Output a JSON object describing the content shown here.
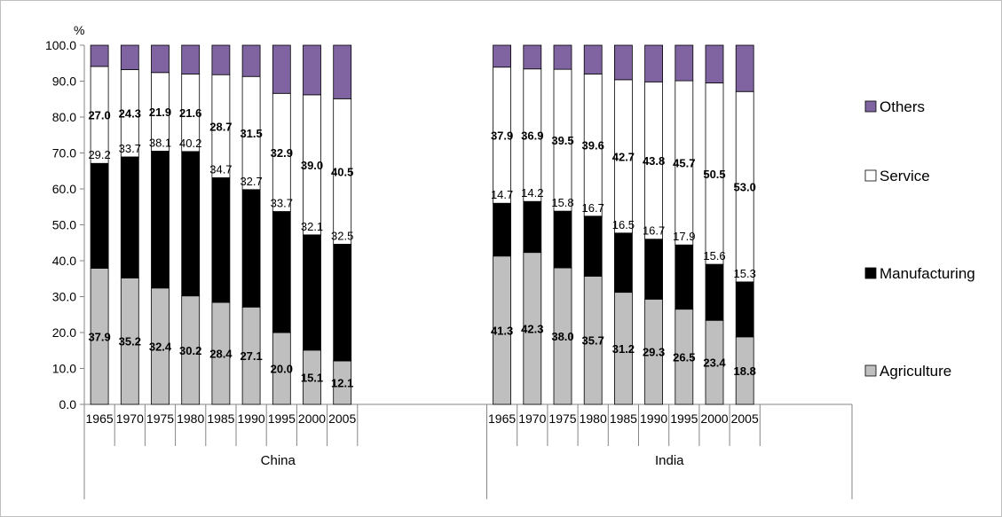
{
  "chart_data": {
    "type": "bar",
    "stacked": true,
    "y_unit_label": "%",
    "ylim": [
      0,
      100
    ],
    "y_ticks": [
      "0.0",
      "10.0",
      "20.0",
      "30.0",
      "40.0",
      "50.0",
      "60.0",
      "70.0",
      "80.0",
      "90.0",
      "100.0"
    ],
    "grid": false,
    "legend_position": "right",
    "groups": [
      {
        "name": "China",
        "categories": [
          "1965",
          "1970",
          "1975",
          "1980",
          "1985",
          "1990",
          "1995",
          "2000",
          "2005"
        ],
        "series": [
          {
            "name": "Agriculture",
            "values": [
              37.9,
              35.2,
              32.4,
              30.2,
              28.4,
              27.1,
              20.0,
              15.1,
              12.1
            ]
          },
          {
            "name": "Manufacturing",
            "values": [
              29.2,
              33.7,
              38.1,
              40.2,
              34.7,
              32.7,
              33.7,
              32.1,
              32.5
            ]
          },
          {
            "name": "Service",
            "values": [
              27.0,
              24.3,
              21.9,
              21.6,
              28.7,
              31.5,
              32.9,
              39.0,
              40.5
            ]
          },
          {
            "name": "Others",
            "values": [
              5.9,
              6.8,
              7.6,
              8.0,
              8.2,
              8.7,
              13.4,
              13.8,
              14.9
            ]
          }
        ]
      },
      {
        "name": "India",
        "categories": [
          "1965",
          "1970",
          "1975",
          "1980",
          "1985",
          "1990",
          "1995",
          "2000",
          "2005"
        ],
        "series": [
          {
            "name": "Agriculture",
            "values": [
              41.3,
              42.3,
              38.0,
              35.7,
              31.2,
              29.3,
              26.5,
              23.4,
              18.8
            ]
          },
          {
            "name": "Manufacturing",
            "values": [
              14.7,
              14.2,
              15.8,
              16.7,
              16.5,
              16.7,
              17.9,
              15.6,
              15.3
            ]
          },
          {
            "name": "Service",
            "values": [
              37.9,
              36.9,
              39.5,
              39.6,
              42.7,
              43.8,
              45.7,
              50.5,
              53.0
            ]
          },
          {
            "name": "Others",
            "values": [
              6.1,
              6.6,
              6.7,
              8.0,
              9.6,
              10.2,
              9.9,
              10.5,
              12.9
            ]
          }
        ]
      }
    ],
    "labeled_series": [
      "Agriculture",
      "Manufacturing",
      "Service"
    ],
    "colors": {
      "Agriculture": "#bfbfbf",
      "Manufacturing": "#000000",
      "Service": "#ffffff",
      "Others": "#8064a2"
    },
    "legend": [
      "Others",
      "Service",
      "Manufacturing",
      "Agriculture"
    ]
  }
}
